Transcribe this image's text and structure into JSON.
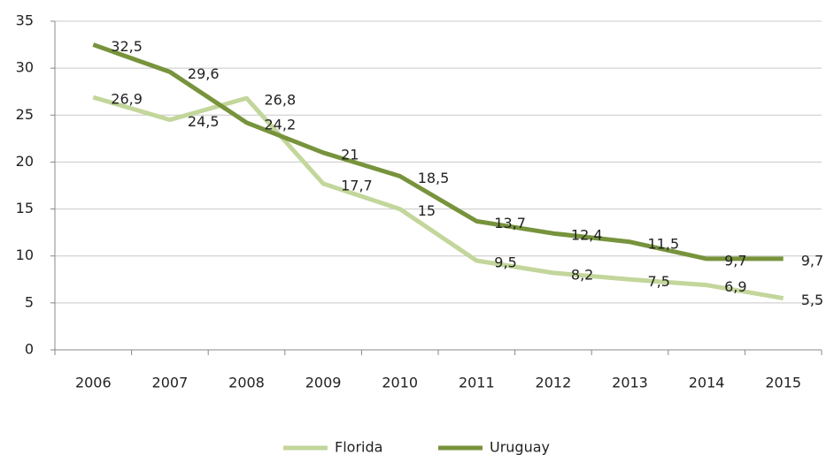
{
  "chart_data": {
    "type": "line",
    "categories": [
      "2006",
      "2007",
      "2008",
      "2009",
      "2010",
      "2011",
      "2012",
      "2013",
      "2014",
      "2015"
    ],
    "series": [
      {
        "name": "Florida",
        "color": "#c3d69b",
        "values": [
          26.9,
          24.5,
          26.8,
          17.7,
          15,
          9.5,
          8.2,
          7.5,
          6.9,
          5.5
        ],
        "value_labels": [
          "26,9",
          "24,5",
          "26,8",
          "17,7",
          "15",
          "9,5",
          "8,2",
          "7,5",
          "6,9",
          "5,5"
        ]
      },
      {
        "name": "Uruguay",
        "color": "#77933c",
        "values": [
          32.5,
          29.6,
          24.2,
          21,
          18.5,
          13.7,
          12.4,
          11.5,
          9.7,
          9.7
        ],
        "value_labels": [
          "32,5",
          "29,6",
          "24,2",
          "21",
          "18,5",
          "13,7",
          "12,4",
          "11,5",
          "9,7",
          "9,7"
        ]
      }
    ],
    "ylim": [
      0,
      35
    ],
    "yticks": [
      0,
      5,
      10,
      15,
      20,
      25,
      30,
      35
    ],
    "grid": true,
    "legend": "bottom"
  }
}
